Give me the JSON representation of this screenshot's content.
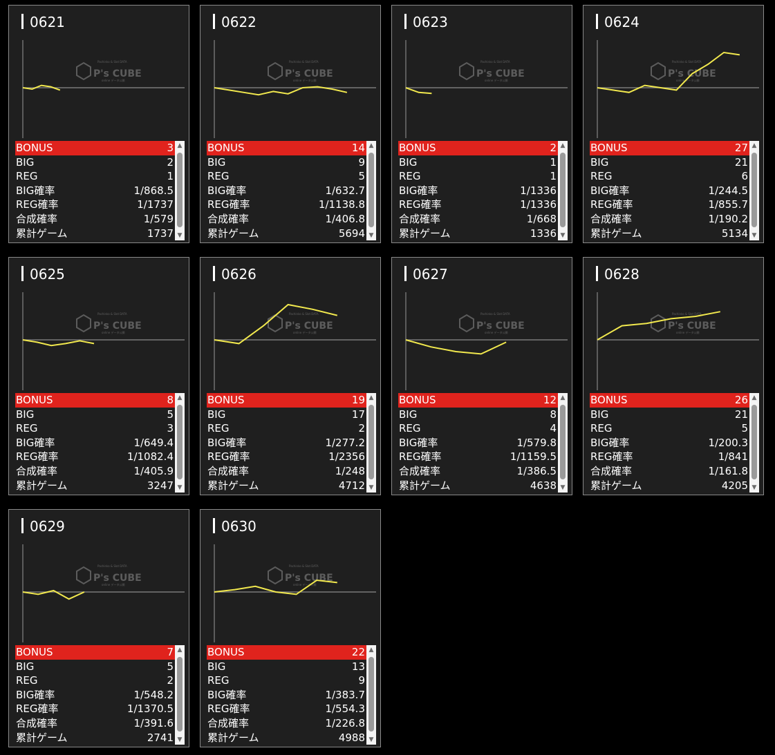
{
  "watermark": {
    "brand": "P's CUBE",
    "small_top": "Pachinko & Slot DATA",
    "small_bottom": "online データ公開"
  },
  "labels": {
    "bonus": "BONUS",
    "big": "BIG",
    "reg": "REG",
    "big_rate": "BIG確率",
    "reg_rate": "REG確率",
    "total_rate": "合成確率",
    "games": "累計ゲーム"
  },
  "colors": {
    "bonus_bar": "#e0231d",
    "line": "#f2e94e",
    "background": "#000000",
    "card": "#1f1f1f"
  },
  "machines": [
    {
      "id": "0621",
      "bonus": "3",
      "big": "2",
      "reg": "1",
      "big_rate": "1/868.5",
      "reg_rate": "1/1737",
      "total_rate": "1/579",
      "games": "1737"
    },
    {
      "id": "0622",
      "bonus": "14",
      "big": "9",
      "reg": "5",
      "big_rate": "1/632.7",
      "reg_rate": "1/1138.8",
      "total_rate": "1/406.8",
      "games": "5694"
    },
    {
      "id": "0623",
      "bonus": "2",
      "big": "1",
      "reg": "1",
      "big_rate": "1/1336",
      "reg_rate": "1/1336",
      "total_rate": "1/668",
      "games": "1336"
    },
    {
      "id": "0624",
      "bonus": "27",
      "big": "21",
      "reg": "6",
      "big_rate": "1/244.5",
      "reg_rate": "1/855.7",
      "total_rate": "1/190.2",
      "games": "5134"
    },
    {
      "id": "0625",
      "bonus": "8",
      "big": "5",
      "reg": "3",
      "big_rate": "1/649.4",
      "reg_rate": "1/1082.4",
      "total_rate": "1/405.9",
      "games": "3247"
    },
    {
      "id": "0626",
      "bonus": "19",
      "big": "17",
      "reg": "2",
      "big_rate": "1/277.2",
      "reg_rate": "1/2356",
      "total_rate": "1/248",
      "games": "4712"
    },
    {
      "id": "0627",
      "bonus": "12",
      "big": "8",
      "reg": "4",
      "big_rate": "1/579.8",
      "reg_rate": "1/1159.5",
      "total_rate": "1/386.5",
      "games": "4638"
    },
    {
      "id": "0628",
      "bonus": "26",
      "big": "21",
      "reg": "5",
      "big_rate": "1/200.3",
      "reg_rate": "1/841",
      "total_rate": "1/161.8",
      "games": "4205"
    },
    {
      "id": "0629",
      "bonus": "7",
      "big": "5",
      "reg": "2",
      "big_rate": "1/548.2",
      "reg_rate": "1/1370.5",
      "total_rate": "1/391.6",
      "games": "2741"
    },
    {
      "id": "0630",
      "bonus": "22",
      "big": "13",
      "reg": "9",
      "big_rate": "1/383.7",
      "reg_rate": "1/554.3",
      "total_rate": "1/226.8",
      "games": "4988"
    }
  ],
  "chart_data": [
    {
      "type": "line",
      "machine": "0621",
      "x_end": 0.23,
      "y": [
        0,
        -0.03,
        0.05,
        0.02,
        -0.05
      ]
    },
    {
      "type": "line",
      "machine": "0622",
      "x_end": 0.82,
      "y": [
        0,
        -0.05,
        -0.1,
        -0.15,
        -0.08,
        -0.13,
        0,
        0.02,
        -0.03,
        -0.1
      ]
    },
    {
      "type": "line",
      "machine": "0623",
      "x_end": 0.16,
      "y": [
        0,
        -0.1,
        -0.12
      ]
    },
    {
      "type": "line",
      "machine": "0624",
      "x_end": 0.88,
      "y": [
        0,
        -0.05,
        -0.1,
        0.05,
        0,
        -0.05,
        0.3,
        0.5,
        0.75,
        0.7
      ]
    },
    {
      "type": "line",
      "machine": "0625",
      "x_end": 0.44,
      "y": [
        0,
        -0.05,
        -0.12,
        -0.08,
        -0.02,
        -0.08
      ]
    },
    {
      "type": "line",
      "machine": "0626",
      "x_end": 0.76,
      "y": [
        0,
        -0.08,
        0.3,
        0.75,
        0.65,
        0.52
      ]
    },
    {
      "type": "line",
      "machine": "0627",
      "x_end": 0.62,
      "y": [
        0,
        -0.15,
        -0.25,
        -0.3,
        -0.05
      ]
    },
    {
      "type": "line",
      "machine": "0628",
      "x_end": 0.76,
      "y": [
        0,
        0.3,
        0.35,
        0.45,
        0.5,
        0.6
      ]
    },
    {
      "type": "line",
      "machine": "0629",
      "x_end": 0.38,
      "y": [
        0,
        -0.05,
        0.03,
        -0.15,
        0
      ]
    },
    {
      "type": "line",
      "machine": "0630",
      "x_end": 0.76,
      "y": [
        0,
        0.05,
        0.12,
        0,
        -0.05,
        0.25,
        0.2
      ]
    }
  ]
}
